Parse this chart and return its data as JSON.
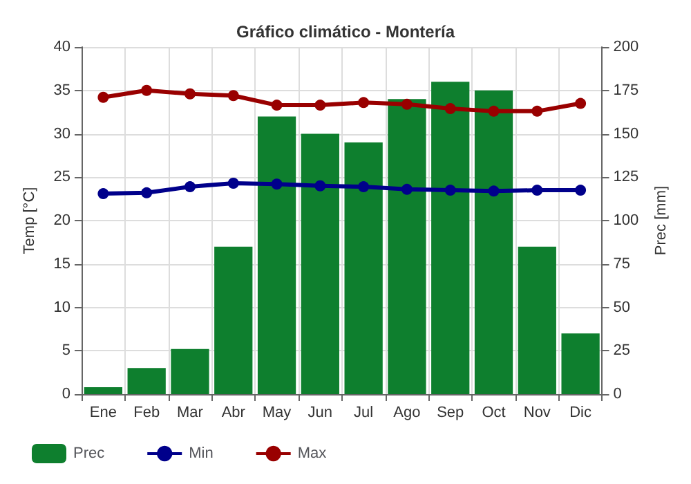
{
  "chart_data": {
    "type": "bar",
    "title": "Gráfico climático - Montería",
    "categories": [
      "Ene",
      "Feb",
      "Mar",
      "Abr",
      "May",
      "Jun",
      "Jul",
      "Ago",
      "Sep",
      "Oct",
      "Nov",
      "Dic"
    ],
    "series": [
      {
        "name": "Prec",
        "axis": "y2",
        "color": "#0e7f2e",
        "values": [
          4,
          15,
          26,
          85,
          160,
          150,
          145,
          170,
          180,
          175,
          85,
          35
        ]
      },
      {
        "name": "Min",
        "type": "line",
        "color": "#00008b",
        "values": [
          23.1,
          23.2,
          23.9,
          24.3,
          24.2,
          24.0,
          23.9,
          23.6,
          23.5,
          23.4,
          23.5,
          23.5
        ]
      },
      {
        "name": "Max",
        "type": "line",
        "color": "#990000",
        "values": [
          34.2,
          35.0,
          34.6,
          34.4,
          33.3,
          33.3,
          33.6,
          33.4,
          32.9,
          32.6,
          32.6,
          33.5
        ]
      }
    ],
    "ylabel": "Temp [°C]",
    "y2label": "Prec [mm]",
    "ylim": [
      0,
      40
    ],
    "yticks": [
      0,
      5,
      10,
      15,
      20,
      25,
      30,
      35,
      40
    ],
    "y2lim": [
      0,
      200
    ],
    "y2ticks": [
      0,
      25,
      50,
      75,
      100,
      125,
      150,
      175,
      200
    ],
    "grid": true,
    "legend": "bottom",
    "marker": "circle",
    "line_style": "solid"
  }
}
